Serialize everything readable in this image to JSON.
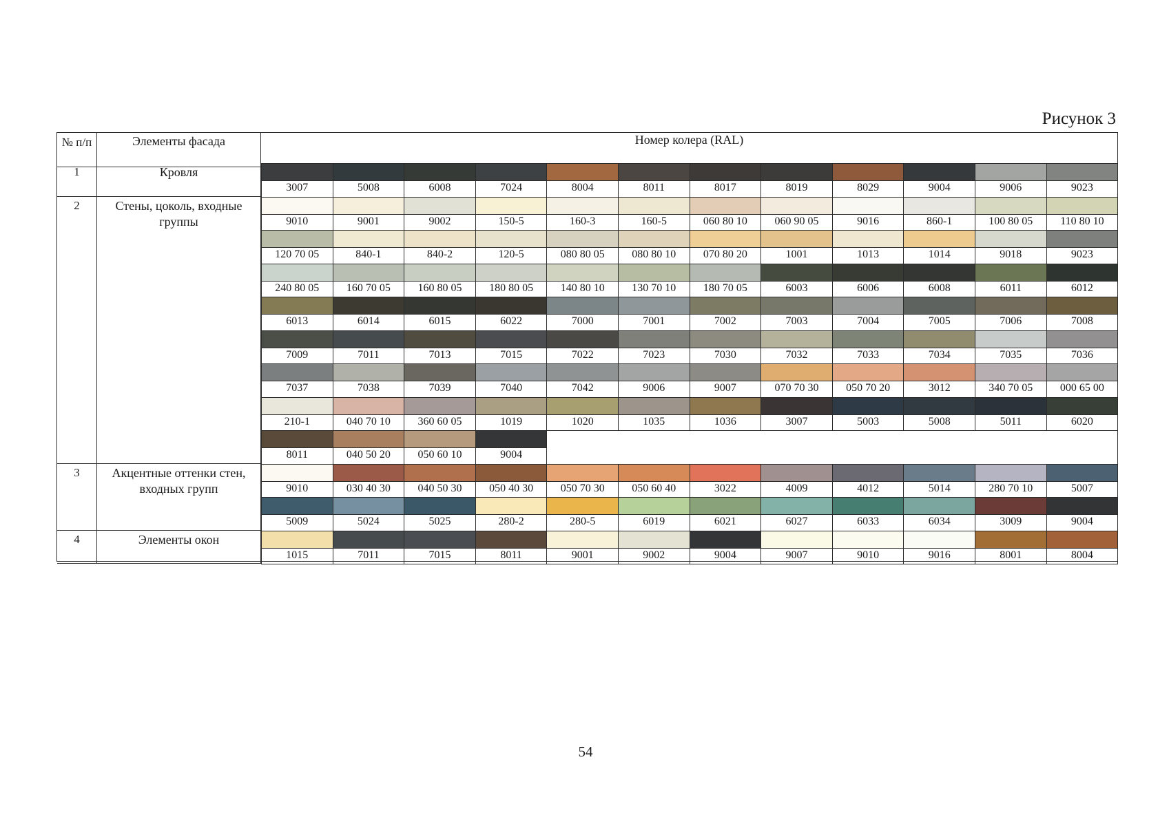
{
  "figure_label": "Рисунок 3",
  "page_number": "54",
  "table": {
    "headers": {
      "num": "№ п/п",
      "element": "Элементы фасада",
      "color_code": "Номер колера (RAL)"
    },
    "sections": [
      {
        "num": "1",
        "name": "Кровля",
        "rows": [
          [
            {
              "code": "3007",
              "color": "#3b3d3f"
            },
            {
              "code": "5008",
              "color": "#323a3e"
            },
            {
              "code": "6008",
              "color": "#353a37"
            },
            {
              "code": "7024",
              "color": "#3d4144"
            },
            {
              "code": "8004",
              "color": "#a2683f"
            },
            {
              "code": "8011",
              "color": "#4b4641"
            },
            {
              "code": "8017",
              "color": "#3e3a37"
            },
            {
              "code": "8019",
              "color": "#3d3b3a"
            },
            {
              "code": "8029",
              "color": "#8e5a3b"
            },
            {
              "code": "9004",
              "color": "#36393b"
            },
            {
              "code": "9006",
              "color": "#a3a5a2"
            },
            {
              "code": "9023",
              "color": "#818481"
            }
          ]
        ]
      },
      {
        "num": "2",
        "name": "Стены, цоколь, входные группы",
        "rows": [
          [
            {
              "code": "9010",
              "color": "#fbf9f1"
            },
            {
              "code": "9001",
              "color": "#f5efdc"
            },
            {
              "code": "9002",
              "color": "#e2e1d6"
            },
            {
              "code": "150-5",
              "color": "#f8f1d4"
            },
            {
              "code": "160-3",
              "color": "#f5f1e4"
            },
            {
              "code": "160-5",
              "color": "#eee8d3"
            },
            {
              "code": "060 80 10",
              "color": "#e3cdb6"
            },
            {
              "code": "060 90 05",
              "color": "#f4ebdf"
            },
            {
              "code": "9016",
              "color": "#f9f8f3"
            },
            {
              "code": "860-1",
              "color": "#e8e7e1"
            },
            {
              "code": "100 80 05",
              "color": "#d8d9c1"
            },
            {
              "code": "110 80 10",
              "color": "#d2d4b4"
            }
          ],
          [
            {
              "code": "120 70 05",
              "color": "#b9bda8"
            },
            {
              "code": "840-1",
              "color": "#f1ead2"
            },
            {
              "code": "840-2",
              "color": "#ece3c9"
            },
            {
              "code": "120-5",
              "color": "#e8e2cc"
            },
            {
              "code": "080 80 05",
              "color": "#d7d1c0"
            },
            {
              "code": "080 80 10",
              "color": "#dfd3b9"
            },
            {
              "code": "070 80 20",
              "color": "#efcf96"
            },
            {
              "code": "1001",
              "color": "#e3c28c"
            },
            {
              "code": "1013",
              "color": "#efe7cf"
            },
            {
              "code": "1014",
              "color": "#edca8e"
            },
            {
              "code": "9018",
              "color": "#d6d8cd"
            },
            {
              "code": "9023",
              "color": "#7d807d"
            }
          ],
          [
            {
              "code": "240 80 05",
              "color": "#cbd3cd"
            },
            {
              "code": "160 70 05",
              "color": "#b9bfb3"
            },
            {
              "code": "160 80 05",
              "color": "#c9cec2"
            },
            {
              "code": "180 80 05",
              "color": "#cdd1c8"
            },
            {
              "code": "140 80 10",
              "color": "#cfd3c0"
            },
            {
              "code": "130 70 10",
              "color": "#b6bda3"
            },
            {
              "code": "180 70 05",
              "color": "#b5bbb2"
            },
            {
              "code": "6003",
              "color": "#454b3e"
            },
            {
              "code": "6006",
              "color": "#383b34"
            },
            {
              "code": "6008",
              "color": "#333633"
            },
            {
              "code": "6011",
              "color": "#6a7654"
            },
            {
              "code": "6012",
              "color": "#2e3430"
            }
          ],
          [
            {
              "code": "6013",
              "color": "#847b55"
            },
            {
              "code": "6014",
              "color": "#3d3b31"
            },
            {
              "code": "6015",
              "color": "#353733"
            },
            {
              "code": "6022",
              "color": "#39372f"
            },
            {
              "code": "7000",
              "color": "#7c8587"
            },
            {
              "code": "7001",
              "color": "#8f979a"
            },
            {
              "code": "7002",
              "color": "#7e7b65"
            },
            {
              "code": "7003",
              "color": "#77776a"
            },
            {
              "code": "7004",
              "color": "#9a9c9c"
            },
            {
              "code": "7005",
              "color": "#5f6360"
            },
            {
              "code": "7006",
              "color": "#726a5b"
            },
            {
              "code": "7008",
              "color": "#6d5e3f"
            }
          ],
          [
            {
              "code": "7009",
              "color": "#4b4f48"
            },
            {
              "code": "7011",
              "color": "#464b4d"
            },
            {
              "code": "7013",
              "color": "#504c40"
            },
            {
              "code": "7015",
              "color": "#4a4c4f"
            },
            {
              "code": "7022",
              "color": "#4a4945"
            },
            {
              "code": "7023",
              "color": "#7f807a"
            },
            {
              "code": "7030",
              "color": "#8d8a80"
            },
            {
              "code": "7032",
              "color": "#b5b29c"
            },
            {
              "code": "7033",
              "color": "#7f8576"
            },
            {
              "code": "7034",
              "color": "#928c6e"
            },
            {
              "code": "7035",
              "color": "#c7cbc9"
            },
            {
              "code": "7036",
              "color": "#929090"
            }
          ],
          [
            {
              "code": "7037",
              "color": "#7c7f7f"
            },
            {
              "code": "7038",
              "color": "#b0b2aa"
            },
            {
              "code": "7039",
              "color": "#6a6660"
            },
            {
              "code": "7040",
              "color": "#9aa0a4"
            },
            {
              "code": "7042",
              "color": "#8f9394"
            },
            {
              "code": "9006",
              "color": "#a3a5a4"
            },
            {
              "code": "9007",
              "color": "#8d8b86"
            },
            {
              "code": "070 70 30",
              "color": "#dfad6f"
            },
            {
              "code": "050 70 20",
              "color": "#e3a987"
            },
            {
              "code": "3012",
              "color": "#d49272"
            },
            {
              "code": "340 70 05",
              "color": "#b7aeb2"
            },
            {
              "code": "000 65 00",
              "color": "#a5a5a5"
            }
          ],
          [
            {
              "code": "210-1",
              "color": "#e9e6db"
            },
            {
              "code": "040 70 10",
              "color": "#d8b4a7"
            },
            {
              "code": "360 60 05",
              "color": "#a59a98"
            },
            {
              "code": "1019",
              "color": "#aa9e83"
            },
            {
              "code": "1020",
              "color": "#a79f6f"
            },
            {
              "code": "1035",
              "color": "#9d958b"
            },
            {
              "code": "1036",
              "color": "#8f784f"
            },
            {
              "code": "3007",
              "color": "#3a3434"
            },
            {
              "code": "5003",
              "color": "#2f3a47"
            },
            {
              "code": "5008",
              "color": "#303a40"
            },
            {
              "code": "5011",
              "color": "#2b323a"
            },
            {
              "code": "6020",
              "color": "#373f37"
            }
          ],
          [
            {
              "code": "8011",
              "color": "#5a4a3a"
            },
            {
              "code": "040 50 20",
              "color": "#a8805f"
            },
            {
              "code": "050 60 10",
              "color": "#b59a7e"
            },
            {
              "code": "9004",
              "color": "#343638"
            }
          ]
        ]
      },
      {
        "num": "3",
        "name": "Акцентные оттенки стен, входных групп",
        "rows": [
          [
            {
              "code": "9010",
              "color": "#fbf9f1"
            },
            {
              "code": "030 40 30",
              "color": "#9b5a47"
            },
            {
              "code": "040 50 30",
              "color": "#b0704d"
            },
            {
              "code": "050 40 30",
              "color": "#8a5a3a"
            },
            {
              "code": "050 70 30",
              "color": "#e6a474"
            },
            {
              "code": "050 60 40",
              "color": "#d68a58"
            },
            {
              "code": "3022",
              "color": "#e0735a"
            },
            {
              "code": "4009",
              "color": "#a0908f"
            },
            {
              "code": "4012",
              "color": "#6b6a72"
            },
            {
              "code": "5014",
              "color": "#6a7b8a"
            },
            {
              "code": "280 70 10",
              "color": "#b4b4c2"
            },
            {
              "code": "5007",
              "color": "#4c6272"
            }
          ],
          [
            {
              "code": "5009",
              "color": "#3f5c6c"
            },
            {
              "code": "5024",
              "color": "#7690a2"
            },
            {
              "code": "5025",
              "color": "#3a5868"
            },
            {
              "code": "280-2",
              "color": "#fae9b8"
            },
            {
              "code": "280-5",
              "color": "#eab54a"
            },
            {
              "code": "6019",
              "color": "#b6d19a"
            },
            {
              "code": "6021",
              "color": "#8aa27a"
            },
            {
              "code": "6027",
              "color": "#83b3a8"
            },
            {
              "code": "6033",
              "color": "#467e72"
            },
            {
              "code": "6034",
              "color": "#7ba6a0"
            },
            {
              "code": "3009",
              "color": "#6b3b38"
            },
            {
              "code": "9004",
              "color": "#323436"
            }
          ]
        ]
      },
      {
        "num": "4",
        "name": "Элементы окон",
        "rows": [
          [
            {
              "code": "1015",
              "color": "#f2dfa9"
            },
            {
              "code": "7011",
              "color": "#464b4e"
            },
            {
              "code": "7015",
              "color": "#4a4d51"
            },
            {
              "code": "8011",
              "color": "#5b4a3b"
            },
            {
              "code": "9001",
              "color": "#f8f2d8"
            },
            {
              "code": "9002",
              "color": "#e4e3d3"
            },
            {
              "code": "9004",
              "color": "#333537"
            },
            {
              "code": "9007",
              "color": "#fbfae7"
            },
            {
              "code": "9010",
              "color": "#fbfbf0"
            },
            {
              "code": "9016",
              "color": "#fbfbf6"
            },
            {
              "code": "8001",
              "color": "#a26e36"
            },
            {
              "code": "8004",
              "color": "#a3613a"
            }
          ]
        ]
      }
    ]
  }
}
